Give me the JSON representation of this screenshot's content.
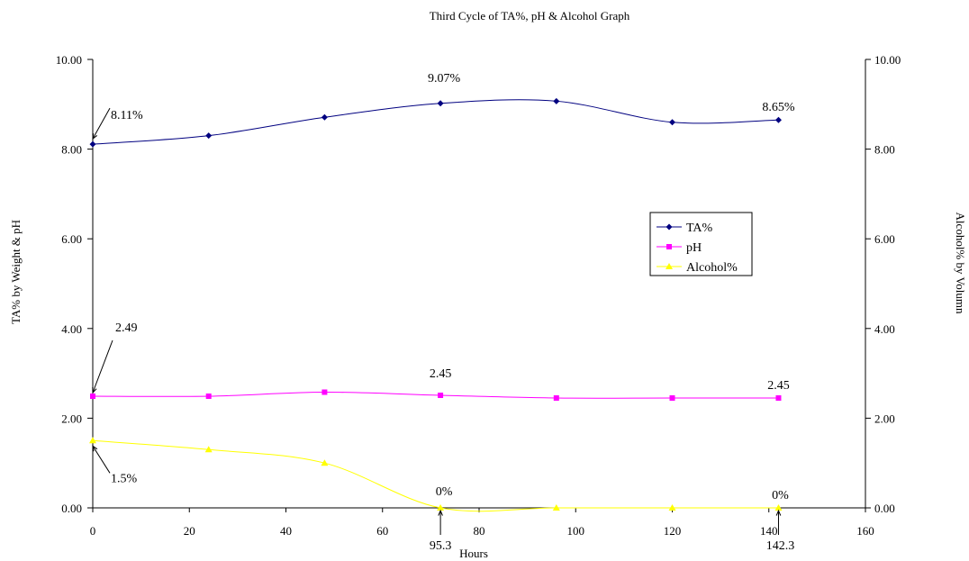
{
  "chart_data": {
    "type": "line",
    "title": "Third Cycle of TA%, pH & Alcohol Graph",
    "xlabel": "Hours",
    "ylabel": "TA% by Weight & pH",
    "y2label": "Alcohol% by Volumn",
    "xlim": [
      0,
      160
    ],
    "ylim": [
      0,
      10
    ],
    "y2lim": [
      0,
      10
    ],
    "x_ticks": [
      "0",
      "20",
      "40",
      "60",
      "80",
      "100",
      "120",
      "140",
      "160"
    ],
    "y_ticks": [
      "0.00",
      "2.00",
      "4.00",
      "6.00",
      "8.00",
      "10.00"
    ],
    "y2_ticks": [
      "0.00",
      "2.00",
      "4.00",
      "6.00",
      "8.00",
      "10.00"
    ],
    "grid": false,
    "legend_position": "right-middle",
    "series": [
      {
        "name": "TA%",
        "color": "#000080",
        "marker": "diamond",
        "x": [
          0,
          24,
          48,
          72,
          96,
          120,
          142
        ],
        "y": [
          8.11,
          8.3,
          8.71,
          9.02,
          9.07,
          8.6,
          8.65
        ]
      },
      {
        "name": "pH",
        "color": "#ff00ff",
        "marker": "square",
        "x": [
          0,
          24,
          48,
          72,
          96,
          120,
          142
        ],
        "y": [
          2.49,
          2.49,
          2.58,
          2.51,
          2.45,
          2.45,
          2.45
        ]
      },
      {
        "name": "Alcohol%",
        "color": "#ffff00",
        "marker": "triangle",
        "x": [
          0,
          24,
          48,
          72,
          96,
          120,
          142
        ],
        "y": [
          1.5,
          1.3,
          1.0,
          0,
          0,
          0,
          0
        ]
      }
    ],
    "annotations": [
      {
        "text": "8.11%",
        "x": 0,
        "y": 8.11,
        "arrow": true
      },
      {
        "text": "9.07%",
        "x": 72,
        "y": 9.02,
        "arrow": false
      },
      {
        "text": "8.65%",
        "x": 142,
        "y": 8.65,
        "arrow": false
      },
      {
        "text": "2.49",
        "x": 0,
        "y": 2.49,
        "arrow": true
      },
      {
        "text": "2.45",
        "x": 72,
        "y": 2.51,
        "arrow": false
      },
      {
        "text": "2.45",
        "x": 142,
        "y": 2.45,
        "arrow": false
      },
      {
        "text": "1.5%",
        "x": 0,
        "y": 1.5,
        "arrow": true
      },
      {
        "text": "0%",
        "x": 72,
        "y": 0,
        "arrow": false
      },
      {
        "text": "0%",
        "x": 142,
        "y": 0,
        "arrow": false
      },
      {
        "text": "95.3",
        "x": 72,
        "y": 0,
        "arrow": true
      },
      {
        "text": "142.3",
        "x": 142,
        "y": 0,
        "arrow": true
      }
    ]
  }
}
